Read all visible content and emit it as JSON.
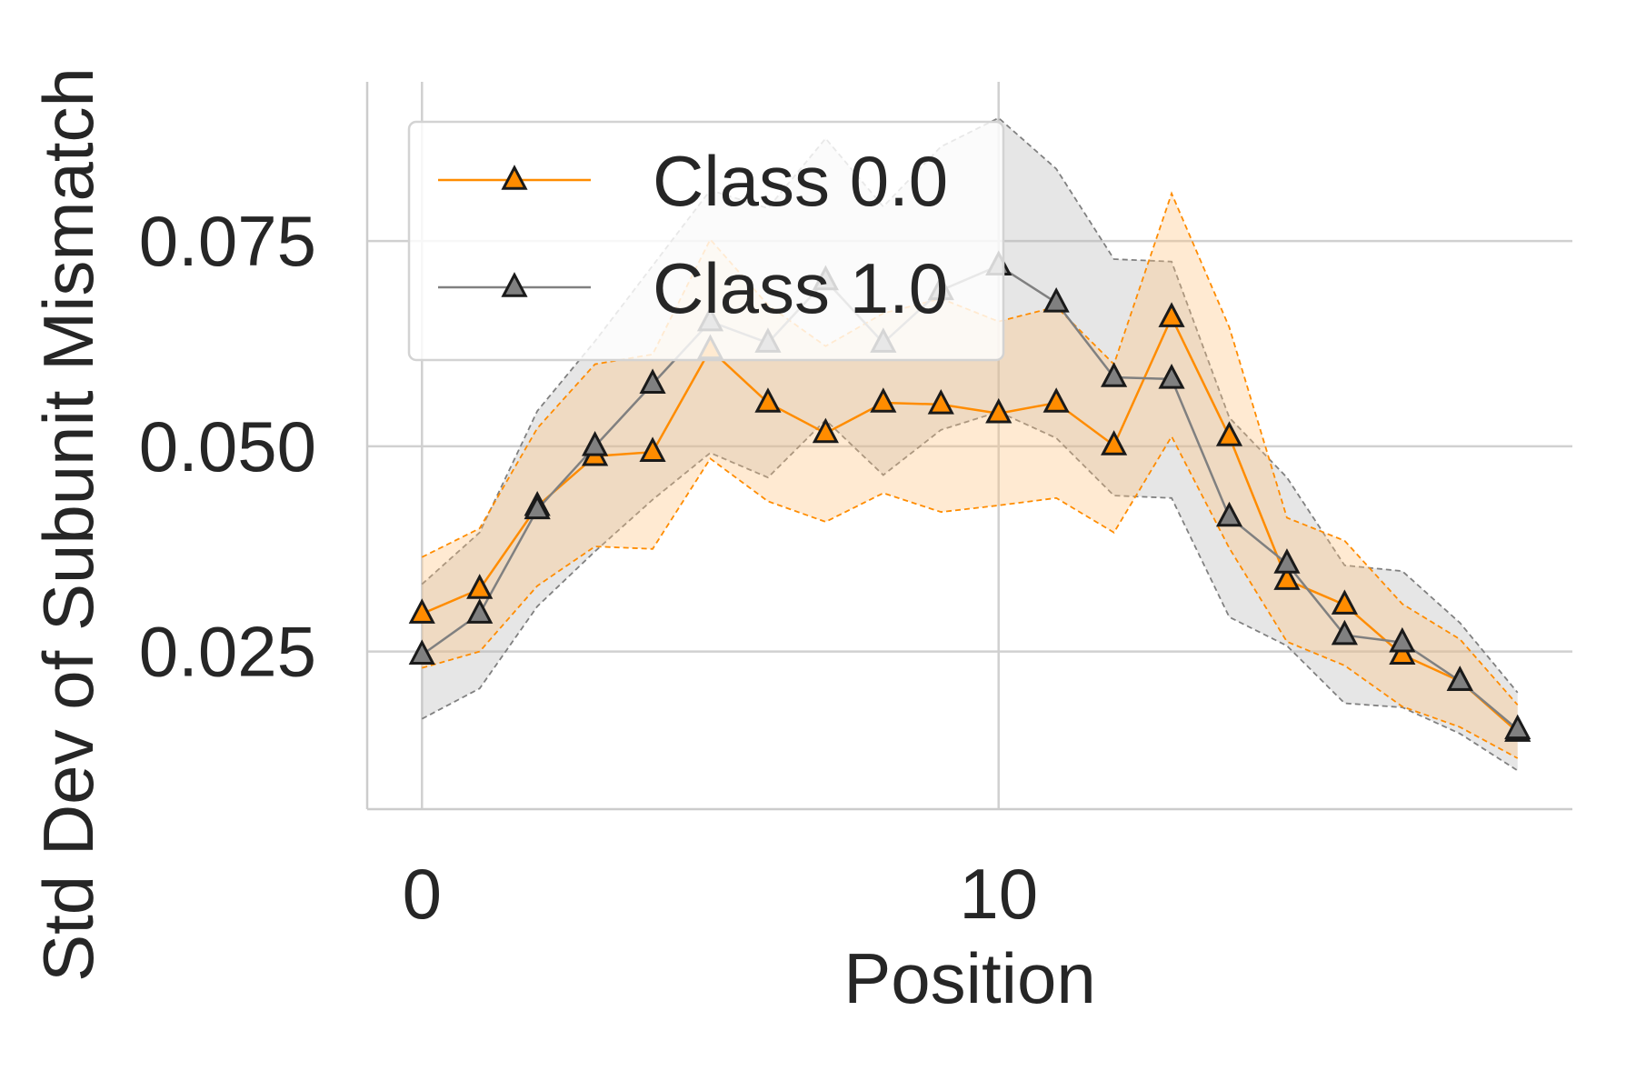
{
  "chart_data": {
    "type": "line",
    "title": "",
    "xlabel": "Position",
    "ylabel": "Std Dev of Subunit Mismatch",
    "xlim": [
      -0.95,
      19.95
    ],
    "ylim": [
      0.0058,
      0.0944
    ],
    "xticks": [
      0,
      10
    ],
    "xtick_labels": [
      "0",
      "10"
    ],
    "yticks": [
      0.025,
      0.05,
      0.075
    ],
    "ytick_labels": [
      "0.025",
      "0.050",
      "0.075"
    ],
    "grid": true,
    "legend_position": "upper-left",
    "x": [
      0,
      1,
      2,
      3,
      4,
      5,
      6,
      7,
      8,
      9,
      10,
      11,
      12,
      13,
      14,
      15,
      16,
      17,
      18,
      19
    ],
    "series": [
      {
        "name": "Class 0.0",
        "color": "#ff8c00",
        "values": [
          0.0296,
          0.0326,
          0.0427,
          0.0488,
          0.0493,
          0.0618,
          0.0553,
          0.0516,
          0.0553,
          0.0551,
          0.054,
          0.0553,
          0.0501,
          0.0657,
          0.0512,
          0.0337,
          0.0307,
          0.0246,
          0.0214,
          0.0152
        ],
        "lower": [
          0.023,
          0.025,
          0.033,
          0.0378,
          0.0375,
          0.0485,
          0.0433,
          0.0408,
          0.0443,
          0.042,
          0.0428,
          0.0437,
          0.0395,
          0.0512,
          0.0376,
          0.0262,
          0.0233,
          0.0183,
          0.0158,
          0.012
        ],
        "upper": [
          0.0365,
          0.04,
          0.0522,
          0.06,
          0.0612,
          0.0752,
          0.0672,
          0.0622,
          0.0662,
          0.068,
          0.0652,
          0.067,
          0.06,
          0.0808,
          0.0645,
          0.0413,
          0.0385,
          0.0308,
          0.0265,
          0.0185
        ]
      },
      {
        "name": "Class 1.0",
        "color": "#808080",
        "values": [
          0.0246,
          0.0296,
          0.0423,
          0.05,
          0.0576,
          0.0652,
          0.0626,
          0.0702,
          0.0626,
          0.069,
          0.072,
          0.0675,
          0.0584,
          0.0582,
          0.0414,
          0.0357,
          0.027,
          0.0261,
          0.0214,
          0.0155
        ],
        "lower": [
          0.0168,
          0.0205,
          0.0305,
          0.0372,
          0.0435,
          0.0492,
          0.0462,
          0.0532,
          0.0465,
          0.052,
          0.0542,
          0.051,
          0.044,
          0.0437,
          0.0292,
          0.0257,
          0.0187,
          0.0182,
          0.015,
          0.0105
        ],
        "upper": [
          0.0332,
          0.0395,
          0.0543,
          0.0628,
          0.072,
          0.0812,
          0.079,
          0.0875,
          0.0792,
          0.0865,
          0.09,
          0.0838,
          0.0728,
          0.0725,
          0.0535,
          0.0462,
          0.0355,
          0.0348,
          0.0285,
          0.02
        ]
      }
    ]
  }
}
